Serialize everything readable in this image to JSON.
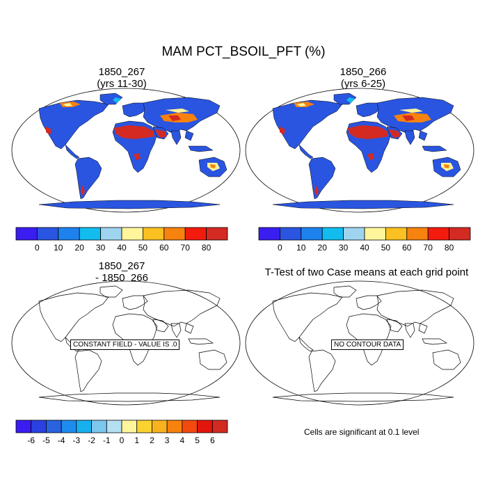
{
  "figure": {
    "title": "MAM PCT_BSOIL_PFT (%)"
  },
  "panels": [
    {
      "id": "case1",
      "title_line1": "1850_267",
      "title_line2": "(yrs 11-30)",
      "type": "filled-map"
    },
    {
      "id": "case2",
      "title_line1": "1850_266",
      "title_line2": "(yrs 6-25)",
      "type": "filled-map"
    },
    {
      "id": "diff",
      "title_line1": "1850_267",
      "title_line2": "- 1850_266",
      "type": "outline-map",
      "message": "CONSTANT FIELD - VALUE IS .0"
    },
    {
      "id": "ttest",
      "title_line1": "T-Test of two Case means at each grid point",
      "title_line2": "",
      "type": "outline-map",
      "message": "NO CONTOUR DATA"
    }
  ],
  "colorbars": {
    "main": {
      "colors": [
        "#3a1df0",
        "#2a55e0",
        "#1e82ee",
        "#12bcef",
        "#9fd4ef",
        "#fff59a",
        "#fbc021",
        "#f7830e",
        "#f21b0e",
        "#d32a22"
      ],
      "labels": [
        "0",
        "10",
        "20",
        "30",
        "40",
        "50",
        "60",
        "70",
        "80"
      ]
    },
    "diff": {
      "colors": [
        "#3a1df0",
        "#2a40e0",
        "#2a62e0",
        "#1e8cee",
        "#17b0ef",
        "#7cc7ef",
        "#b4e0f2",
        "#fff59a",
        "#fbd331",
        "#f9b21f",
        "#f7830e",
        "#f24a0e",
        "#e3160e",
        "#d32a22"
      ],
      "labels": [
        "-6",
        "-5",
        "-4",
        "-3",
        "-2",
        "-1",
        "0",
        "1",
        "2",
        "3",
        "4",
        "5",
        "6"
      ]
    }
  },
  "footnote": "Cells are significant at 0.1 level",
  "map_colors": {
    "ocean": "#ffffff",
    "land_base": "#2a55e0",
    "desert": "#d32a22",
    "semi_arid": "#f7830e",
    "yellow": "#fff59a",
    "light_blue": "#12bcef"
  }
}
